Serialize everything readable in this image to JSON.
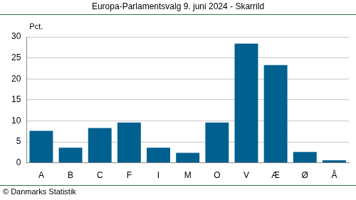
{
  "chart_data": {
    "type": "bar",
    "title": "Europa-Parlamentsvalg 9. juni 2024 - Skarrild",
    "y_label": "Pct.",
    "source": "© Danmarks Statistik",
    "categories": [
      "A",
      "B",
      "C",
      "F",
      "I",
      "M",
      "O",
      "V",
      "Æ",
      "Ø",
      "Å"
    ],
    "values": [
      7.6,
      3.6,
      8.3,
      9.6,
      3.6,
      2.4,
      9.6,
      28.4,
      23.3,
      2.6,
      0.6
    ],
    "color": "#00608f",
    "ylim": [
      0,
      30
    ],
    "yticks": [
      0,
      5,
      10,
      15,
      20,
      25,
      30
    ],
    "grid": true
  }
}
